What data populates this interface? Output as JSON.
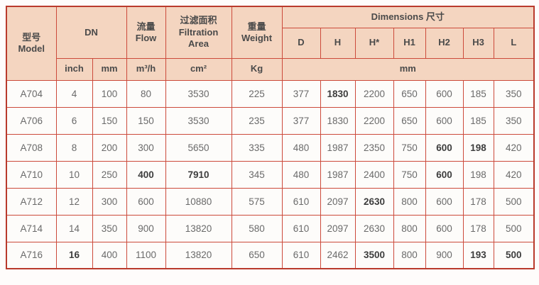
{
  "colors": {
    "outer_border": "#b93a2c",
    "grid_border": "#cc4a3b",
    "header_bg": "#f4d5c0",
    "cell_bg": "#fdfcfa",
    "header_text": "#4a4a4a",
    "cell_text": "#6a6a6a"
  },
  "table": {
    "header": {
      "model": "型号\nModel",
      "dn": "DN",
      "flow": "流量\nFlow",
      "filtration": "过滤面积\nFiltration\nArea",
      "weight": "重量\nWeight",
      "dimensions": "Dimensions 尺寸",
      "dim_cols": [
        "D",
        "H",
        "H*",
        "H1",
        "H2",
        "H3",
        "L"
      ],
      "unit_inch": "inch",
      "unit_mm": "mm",
      "unit_flow": "m³/h",
      "unit_area": "cm²",
      "unit_weight": "Kg",
      "unit_dims": "mm"
    },
    "columns": [
      "model",
      "inch",
      "mm",
      "flow",
      "area",
      "weight",
      "D",
      "H",
      "H*",
      "H1",
      "H2",
      "H3",
      "L"
    ],
    "rows": [
      [
        "A704",
        "4",
        "100",
        "80",
        "3530",
        "225",
        "377",
        "1830",
        "2200",
        "650",
        "600",
        "185",
        "350"
      ],
      [
        "A706",
        "6",
        "150",
        "150",
        "3530",
        "235",
        "377",
        "1830",
        "2200",
        "650",
        "600",
        "185",
        "350"
      ],
      [
        "A708",
        "8",
        "200",
        "300",
        "5650",
        "335",
        "480",
        "1987",
        "2350",
        "750",
        "600",
        "198",
        "420"
      ],
      [
        "A710",
        "10",
        "250",
        "400",
        "7910",
        "345",
        "480",
        "1987",
        "2400",
        "750",
        "600",
        "198",
        "420"
      ],
      [
        "A712",
        "12",
        "300",
        "600",
        "10880",
        "575",
        "610",
        "2097",
        "2630",
        "800",
        "600",
        "178",
        "500"
      ],
      [
        "A714",
        "14",
        "350",
        "900",
        "13820",
        "580",
        "610",
        "2097",
        "2630",
        "800",
        "600",
        "178",
        "500"
      ],
      [
        "A716",
        "16",
        "400",
        "1100",
        "13820",
        "650",
        "610",
        "2462",
        "3500",
        "800",
        "900",
        "193",
        "500"
      ]
    ],
    "bold_cells": [
      [
        0,
        7
      ],
      [
        2,
        10
      ],
      [
        2,
        11
      ],
      [
        3,
        3
      ],
      [
        3,
        4
      ],
      [
        3,
        10
      ],
      [
        4,
        8
      ],
      [
        6,
        1
      ],
      [
        6,
        8
      ],
      [
        6,
        11
      ],
      [
        6,
        12
      ]
    ]
  }
}
